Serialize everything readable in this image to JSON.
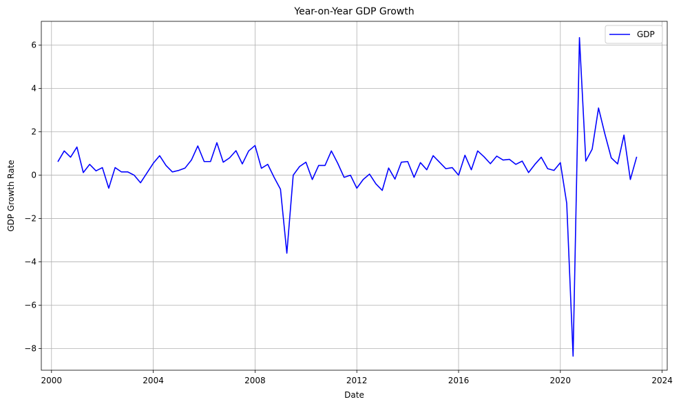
{
  "chart_data": {
    "type": "line",
    "title": "Year-on-Year GDP Growth",
    "xlabel": "Date",
    "ylabel": "GDP Growth Rate",
    "grid": true,
    "legend_position": "top-right",
    "x_ticks": [
      2000,
      2004,
      2008,
      2012,
      2016,
      2020,
      2024
    ],
    "y_ticks": [
      -8,
      -6,
      -4,
      -2,
      0,
      2,
      4,
      6
    ],
    "xlim": [
      1999.6,
      2024.2
    ],
    "ylim": [
      -9.0,
      7.1
    ],
    "series": [
      {
        "name": "GDP",
        "color": "#0000ff",
        "points": [
          [
            "2000.25",
            0.62
          ],
          [
            "2000.5",
            1.12
          ],
          [
            "2000.75",
            0.83
          ],
          [
            "2001.0",
            1.3
          ],
          [
            "2001.25",
            0.12
          ],
          [
            "2001.5",
            0.5
          ],
          [
            "2001.75",
            0.2
          ],
          [
            "2002.0",
            0.35
          ],
          [
            "2002.25",
            -0.6
          ],
          [
            "2002.5",
            0.35
          ],
          [
            "2002.75",
            0.15
          ],
          [
            "2003.0",
            0.15
          ],
          [
            "2003.25",
            0.0
          ],
          [
            "2003.5",
            -0.35
          ],
          [
            "2003.75",
            0.1
          ],
          [
            "2004.0",
            0.55
          ],
          [
            "2004.25",
            0.9
          ],
          [
            "2004.5",
            0.45
          ],
          [
            "2004.75",
            0.15
          ],
          [
            "2005.0",
            0.22
          ],
          [
            "2005.25",
            0.33
          ],
          [
            "2005.5",
            0.7
          ],
          [
            "2005.75",
            1.35
          ],
          [
            "2006.0",
            0.63
          ],
          [
            "2006.25",
            0.63
          ],
          [
            "2006.5",
            1.5
          ],
          [
            "2006.75",
            0.6
          ],
          [
            "2007.0",
            0.8
          ],
          [
            "2007.25",
            1.13
          ],
          [
            "2007.5",
            0.52
          ],
          [
            "2007.75",
            1.12
          ],
          [
            "2008.0",
            1.37
          ],
          [
            "2008.25",
            0.32
          ],
          [
            "2008.5",
            0.5
          ],
          [
            "2008.75",
            -0.1
          ],
          [
            "2009.0",
            -0.65
          ],
          [
            "2009.25",
            -3.6
          ],
          [
            "2009.5",
            0.0
          ],
          [
            "2009.75",
            0.4
          ],
          [
            "2010.0",
            0.6
          ],
          [
            "2010.25",
            -0.2
          ],
          [
            "2010.5",
            0.45
          ],
          [
            "2010.75",
            0.45
          ],
          [
            "2011.0",
            1.12
          ],
          [
            "2011.25",
            0.55
          ],
          [
            "2011.5",
            -0.1
          ],
          [
            "2011.75",
            0.0
          ],
          [
            "2012.0",
            -0.6
          ],
          [
            "2012.25",
            -0.2
          ],
          [
            "2012.5",
            0.05
          ],
          [
            "2012.75",
            -0.4
          ],
          [
            "2013.0",
            -0.7
          ],
          [
            "2013.25",
            0.33
          ],
          [
            "2013.5",
            -0.18
          ],
          [
            "2013.75",
            0.6
          ],
          [
            "2014.0",
            0.63
          ],
          [
            "2014.25",
            -0.1
          ],
          [
            "2014.5",
            0.58
          ],
          [
            "2014.75",
            0.25
          ],
          [
            "2015.0",
            0.9
          ],
          [
            "2015.25",
            0.6
          ],
          [
            "2015.5",
            0.3
          ],
          [
            "2015.75",
            0.35
          ],
          [
            "2016.0",
            0.0
          ],
          [
            "2016.25",
            0.92
          ],
          [
            "2016.5",
            0.25
          ],
          [
            "2016.75",
            1.12
          ],
          [
            "2017.0",
            0.85
          ],
          [
            "2017.25",
            0.53
          ],
          [
            "2017.5",
            0.88
          ],
          [
            "2017.75",
            0.7
          ],
          [
            "2018.0",
            0.73
          ],
          [
            "2018.25",
            0.5
          ],
          [
            "2018.5",
            0.65
          ],
          [
            "2018.75",
            0.12
          ],
          [
            "2019.0",
            0.5
          ],
          [
            "2019.25",
            0.83
          ],
          [
            "2019.5",
            0.3
          ],
          [
            "2019.75",
            0.22
          ],
          [
            "2020.0",
            0.58
          ],
          [
            "2020.25",
            -1.3
          ],
          [
            "2020.5",
            -8.35
          ],
          [
            "2020.75",
            6.35
          ],
          [
            "2021.0",
            0.65
          ],
          [
            "2021.25",
            1.2
          ],
          [
            "2021.5",
            3.1
          ],
          [
            "2021.75",
            1.9
          ],
          [
            "2022.0",
            0.8
          ],
          [
            "2022.25",
            0.52
          ],
          [
            "2022.5",
            1.85
          ],
          [
            "2022.75",
            -0.2
          ],
          [
            "2023.0",
            0.85
          ]
        ]
      }
    ]
  }
}
